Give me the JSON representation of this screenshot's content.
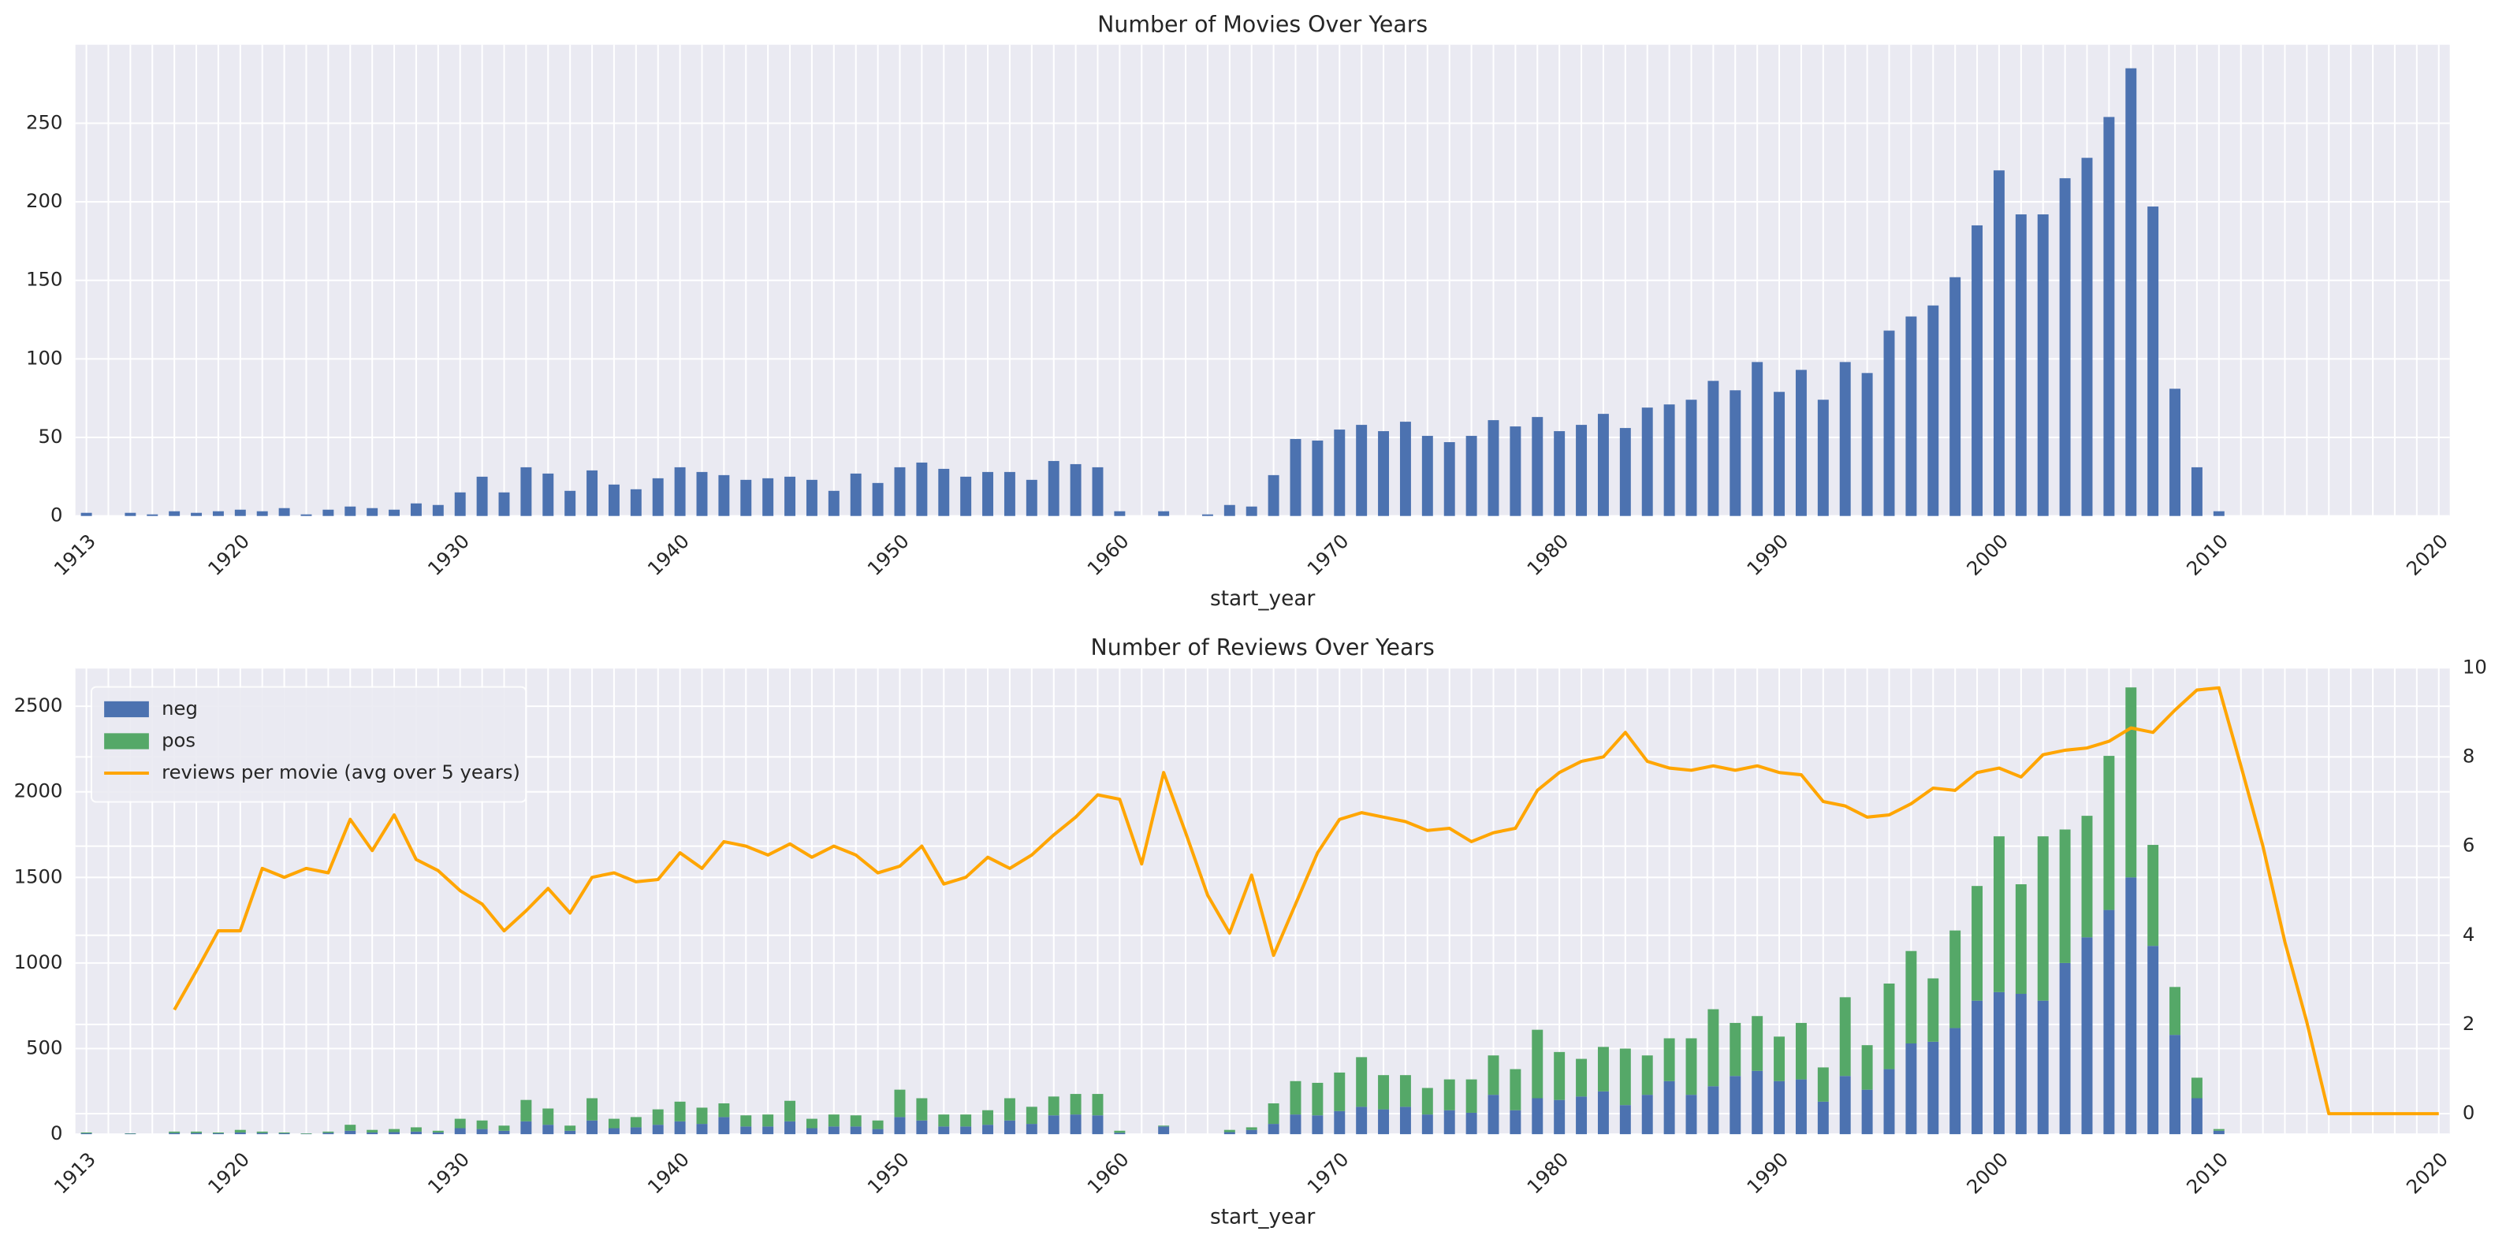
{
  "chart_data": [
    {
      "type": "bar",
      "title": "Number of Movies Over Years",
      "xlabel": "start_year",
      "color": "#4c72b0",
      "grid": true,
      "categories": [
        "1913",
        null,
        null,
        null,
        null,
        null,
        null,
        "1920",
        null,
        null,
        null,
        null,
        null,
        null,
        null,
        null,
        null,
        "1930",
        null,
        null,
        null,
        null,
        null,
        null,
        null,
        null,
        null,
        "1940",
        null,
        null,
        null,
        null,
        null,
        null,
        null,
        null,
        null,
        "1950",
        null,
        null,
        null,
        null,
        null,
        null,
        null,
        null,
        null,
        "1960",
        null,
        null,
        null,
        null,
        null,
        null,
        null,
        null,
        null,
        "1970",
        null,
        null,
        null,
        null,
        null,
        null,
        null,
        null,
        null,
        "1980",
        null,
        null,
        null,
        null,
        null,
        null,
        null,
        null,
        null,
        "1990",
        null,
        null,
        null,
        null,
        null,
        null,
        null,
        null,
        null,
        "2000",
        null,
        null,
        null,
        null,
        null,
        null,
        null,
        null,
        null,
        "2010",
        null,
        null,
        null,
        null,
        null,
        null,
        null,
        null,
        null,
        "2020"
      ],
      "values": [
        2,
        0,
        2,
        1,
        3,
        2,
        3,
        4,
        3,
        5,
        1,
        4,
        6,
        5,
        4,
        8,
        7,
        15,
        25,
        15,
        31,
        27,
        16,
        29,
        20,
        17,
        24,
        31,
        28,
        26,
        23,
        24,
        25,
        23,
        16,
        27,
        21,
        31,
        34,
        30,
        25,
        28,
        28,
        23,
        35,
        33,
        31,
        3,
        0,
        3,
        0,
        1,
        7,
        6,
        26,
        49,
        48,
        55,
        58,
        54,
        60,
        51,
        47,
        51,
        61,
        57,
        63,
        54,
        58,
        65,
        56,
        69,
        71,
        74,
        86,
        80,
        98,
        79,
        93,
        74,
        98,
        91,
        118,
        127,
        134,
        152,
        185,
        220,
        192,
        192,
        215,
        228,
        254,
        285,
        197,
        81,
        31,
        3,
        0,
        0,
        0,
        0,
        0,
        0,
        0,
        0,
        0,
        0
      ],
      "ylim": [
        0,
        300
      ],
      "yticks": [
        0,
        50,
        100,
        150,
        200,
        250
      ]
    },
    {
      "type": "bar",
      "title": "Number of Reviews Over Years",
      "xlabel": "start_year",
      "stacked": true,
      "grid": true,
      "legend": "upper left",
      "categories": [
        "1913",
        null,
        null,
        null,
        null,
        null,
        null,
        "1920",
        null,
        null,
        null,
        null,
        null,
        null,
        null,
        null,
        null,
        "1930",
        null,
        null,
        null,
        null,
        null,
        null,
        null,
        null,
        null,
        "1940",
        null,
        null,
        null,
        null,
        null,
        null,
        null,
        null,
        null,
        "1950",
        null,
        null,
        null,
        null,
        null,
        null,
        null,
        null,
        null,
        "1960",
        null,
        null,
        null,
        null,
        null,
        null,
        null,
        null,
        null,
        "1970",
        null,
        null,
        null,
        null,
        null,
        null,
        null,
        null,
        null,
        "1980",
        null,
        null,
        null,
        null,
        null,
        null,
        null,
        null,
        null,
        "1990",
        null,
        null,
        null,
        null,
        null,
        null,
        null,
        null,
        null,
        "2000",
        null,
        null,
        null,
        null,
        null,
        null,
        null,
        null,
        null,
        "2010",
        null,
        null,
        null,
        null,
        null,
        null,
        null,
        null,
        null,
        "2020"
      ],
      "series": [
        {
          "name": "neg",
          "color": "#4c72b0",
          "values": [
            5,
            0,
            3,
            0,
            7,
            7,
            5,
            10,
            7,
            5,
            2,
            8,
            20,
            10,
            12,
            15,
            10,
            35,
            30,
            20,
            75,
            55,
            20,
            80,
            35,
            40,
            55,
            75,
            60,
            100,
            45,
            45,
            75,
            35,
            45,
            45,
            30,
            100,
            80,
            45,
            45,
            55,
            80,
            60,
            110,
            115,
            110,
            8,
            0,
            45,
            0,
            0,
            12,
            25,
            60,
            115,
            110,
            135,
            160,
            145,
            160,
            115,
            140,
            125,
            230,
            140,
            210,
            200,
            220,
            250,
            170,
            230,
            310,
            230,
            280,
            340,
            370,
            310,
            320,
            190,
            340,
            260,
            380,
            530,
            540,
            620,
            780,
            830,
            820,
            780,
            1000,
            1150,
            1310,
            1500,
            1100,
            580,
            210,
            20,
            0,
            0,
            0,
            0,
            0,
            0,
            0,
            0,
            0,
            0
          ]
        },
        {
          "name": "pos",
          "color": "#55a868",
          "values": [
            5,
            0,
            2,
            0,
            8,
            8,
            5,
            15,
            8,
            5,
            3,
            7,
            35,
            15,
            18,
            25,
            10,
            55,
            50,
            30,
            125,
            95,
            30,
            130,
            55,
            60,
            90,
            115,
            95,
            80,
            65,
            70,
            120,
            55,
            70,
            65,
            50,
            160,
            130,
            70,
            70,
            85,
            130,
            100,
            110,
            120,
            125,
            12,
            0,
            5,
            0,
            0,
            13,
            15,
            120,
            195,
            190,
            225,
            290,
            200,
            185,
            155,
            180,
            195,
            230,
            240,
            400,
            280,
            220,
            260,
            330,
            230,
            250,
            330,
            450,
            310,
            320,
            260,
            330,
            200,
            460,
            260,
            500,
            540,
            370,
            570,
            670,
            910,
            640,
            960,
            780,
            710,
            900,
            1110,
            590,
            280,
            120,
            10,
            0,
            0,
            0,
            0,
            0,
            0,
            0,
            0,
            0,
            0
          ]
        },
        {
          "name": "reviews per movie (avg over 5 years)",
          "color": "#ffa500",
          "type": "line",
          "axis": "y2",
          "values": [
            null,
            null,
            null,
            null,
            2.33,
            3.2,
            4.1,
            4.1,
            5.5,
            5.3,
            5.5,
            5.4,
            6.6,
            5.9,
            6.7,
            5.7,
            5.45,
            5.0,
            4.7,
            4.1,
            4.55,
            5.05,
            4.5,
            5.3,
            5.4,
            5.2,
            5.25,
            5.85,
            5.5,
            6.1,
            6.0,
            5.8,
            6.05,
            5.75,
            6.0,
            5.8,
            5.4,
            5.55,
            6.0,
            5.15,
            5.3,
            5.75,
            5.5,
            5.8,
            6.25,
            6.65,
            7.15,
            7.05,
            5.6,
            7.65,
            6.3,
            4.9,
            4.05,
            5.35,
            3.55,
            4.7,
            5.85,
            6.6,
            6.75,
            6.65,
            6.55,
            6.35,
            6.4,
            6.1,
            6.3,
            6.4,
            7.25,
            7.65,
            7.9,
            8.0,
            8.55,
            7.9,
            7.75,
            7.7,
            7.8,
            7.7,
            7.8,
            7.65,
            7.6,
            7.0,
            6.9,
            6.65,
            6.7,
            6.95,
            7.3,
            7.25,
            7.65,
            7.75,
            7.55,
            8.05,
            8.15,
            8.2,
            8.35,
            8.65,
            8.55,
            9.05,
            9.5,
            9.55,
            7.8,
            6.0,
            3.85,
            2.05,
            0,
            0,
            0,
            0,
            0,
            0
          ]
        }
      ],
      "ylim": [
        0,
        2725
      ],
      "yticks": [
        0,
        500,
        1000,
        1500,
        2000,
        2500
      ],
      "y2lim": [
        -0.46,
        10
      ],
      "y2ticks": [
        0,
        2,
        4,
        6,
        8,
        10
      ]
    }
  ]
}
